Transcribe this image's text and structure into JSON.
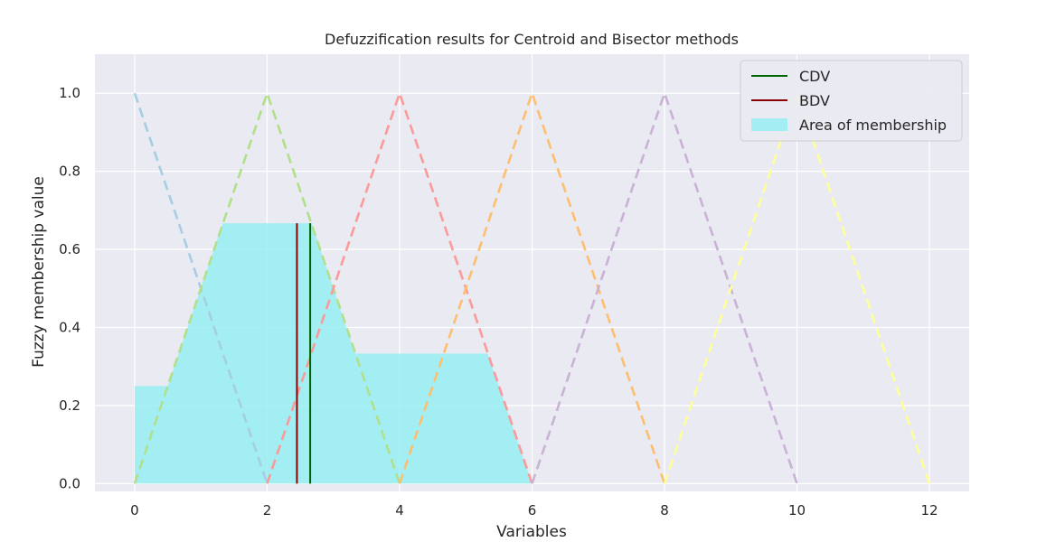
{
  "chart_data": {
    "type": "line",
    "title": "Defuzzification results for Centroid and Bisector methods",
    "xlabel": "Variables",
    "ylabel": "Fuzzy membership value",
    "xlim": [
      -0.6,
      12.6
    ],
    "ylim": [
      -0.02,
      1.1
    ],
    "x_ticks": [
      0,
      2,
      4,
      6,
      8,
      10,
      12
    ],
    "y_ticks": [
      0.0,
      0.2,
      0.4,
      0.6,
      0.8,
      1.0
    ],
    "grid": true,
    "legend_position": "top-right",
    "colors": {
      "background": "#eaeaf2",
      "grid": "#ffffff",
      "area": "#97eef2",
      "cdv": "#006400",
      "bdv": "#8b0000"
    },
    "membership_functions": [
      {
        "x": [
          0,
          0,
          2
        ],
        "y": [
          1,
          1,
          0
        ],
        "color": "#a6cee3"
      },
      {
        "x": [
          0,
          2,
          4
        ],
        "y": [
          0,
          1,
          0
        ],
        "color": "#b2df8a"
      },
      {
        "x": [
          2,
          4,
          6
        ],
        "y": [
          0,
          1,
          0
        ],
        "color": "#fb9a99"
      },
      {
        "x": [
          4,
          6,
          8
        ],
        "y": [
          0,
          1,
          0
        ],
        "color": "#fdbf6f"
      },
      {
        "x": [
          6,
          8,
          10
        ],
        "y": [
          0,
          1,
          0
        ],
        "color": "#cab2d6"
      },
      {
        "x": [
          8,
          10,
          12
        ],
        "y": [
          0,
          1,
          0
        ],
        "color": "#ffff99"
      }
    ],
    "area_of_membership": {
      "name": "Area of membership",
      "x": [
        0,
        0,
        0.5,
        1.33,
        2.67,
        3.33,
        5.33,
        6,
        6
      ],
      "y": [
        0,
        0.25,
        0.25,
        0.667,
        0.667,
        0.333,
        0.333,
        0,
        0
      ]
    },
    "series": [
      {
        "name": "CDV",
        "x": 2.65,
        "ymin": 0,
        "ymax": 0.667,
        "color": "#006400"
      },
      {
        "name": "BDV",
        "x": 2.45,
        "ymin": 0,
        "ymax": 0.667,
        "color": "#8b0000"
      }
    ]
  }
}
